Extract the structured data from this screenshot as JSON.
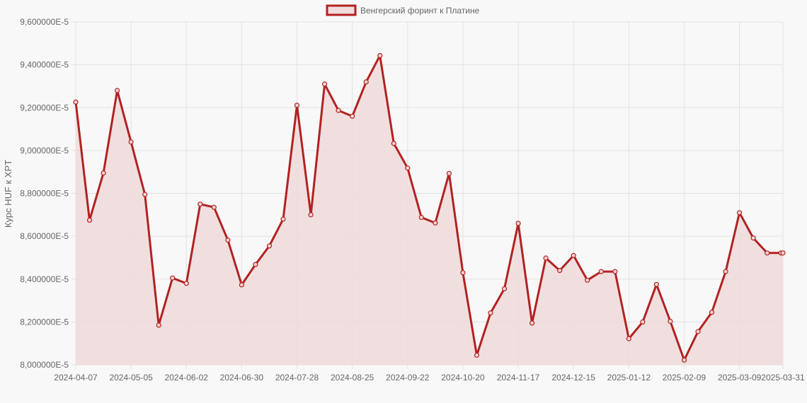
{
  "chart_data": {
    "type": "area",
    "ylabel": "Курс HUF к XPT",
    "legend": {
      "position": "top",
      "label": "Венгерский форинт к Платине"
    },
    "grid": true,
    "colors": {
      "line": "#b22222",
      "fill": "#f0dcdc",
      "background": "#f8f8f8"
    },
    "ylim": [
      8e-05,
      9.6e-05
    ],
    "yticks": [
      "9,600000E-5",
      "9,400000E-5",
      "9,200000E-5",
      "9,000000E-5",
      "8,800000E-5",
      "8,600000E-5",
      "8,400000E-5",
      "8,200000E-5",
      "8,000000E-5"
    ],
    "ytick_values": [
      9.6e-05,
      9.4e-05,
      9.2e-05,
      9e-05,
      8.8e-05,
      8.6e-05,
      8.4e-05,
      8.2e-05,
      8e-05
    ],
    "xticks": [
      "2024-04-07",
      "2024-05-05",
      "2024-06-02",
      "2024-06-30",
      "2024-07-28",
      "2024-08-25",
      "2024-09-22",
      "2024-10-20",
      "2024-11-17",
      "2024-12-15",
      "2025-01-12",
      "2025-02-09",
      "2025-03-09",
      "2025-03-31"
    ],
    "x": [
      "2024-04-07",
      "2024-04-14",
      "2024-04-21",
      "2024-04-28",
      "2024-05-05",
      "2024-05-12",
      "2024-05-19",
      "2024-05-26",
      "2024-06-02",
      "2024-06-09",
      "2024-06-16",
      "2024-06-23",
      "2024-06-30",
      "2024-07-07",
      "2024-07-14",
      "2024-07-21",
      "2024-07-28",
      "2024-08-04",
      "2024-08-11",
      "2024-08-18",
      "2024-08-25",
      "2024-09-01",
      "2024-09-08",
      "2024-09-15",
      "2024-09-22",
      "2024-09-29",
      "2024-10-06",
      "2024-10-13",
      "2024-10-20",
      "2024-10-27",
      "2024-11-03",
      "2024-11-10",
      "2024-11-17",
      "2024-11-24",
      "2024-12-01",
      "2024-12-08",
      "2024-12-15",
      "2024-12-22",
      "2024-12-29",
      "2025-01-05",
      "2025-01-12",
      "2025-01-19",
      "2025-01-26",
      "2025-02-02",
      "2025-02-09",
      "2025-02-16",
      "2025-02-23",
      "2025-03-02",
      "2025-03-09",
      "2025-03-16",
      "2025-03-23",
      "2025-03-30",
      "2025-03-31"
    ],
    "series": [
      {
        "name": "Венгерский форинт к Платине",
        "values": [
          9.226e-05,
          8.675e-05,
          8.895e-05,
          9.28e-05,
          9.04e-05,
          8.795e-05,
          8.185e-05,
          8.405e-05,
          8.38e-05,
          8.75e-05,
          8.735e-05,
          8.582e-05,
          8.373e-05,
          8.468e-05,
          8.555e-05,
          8.68e-05,
          9.211e-05,
          8.7e-05,
          9.31e-05,
          9.187e-05,
          9.16e-05,
          9.32e-05,
          9.443e-05,
          9.033e-05,
          8.918e-05,
          8.688e-05,
          8.662e-05,
          8.893e-05,
          8.43e-05,
          8.045e-05,
          8.242e-05,
          8.355e-05,
          8.66e-05,
          8.195e-05,
          8.498e-05,
          8.44e-05,
          8.51e-05,
          8.395e-05,
          8.435e-05,
          8.435e-05,
          8.122e-05,
          8.2e-05,
          8.375e-05,
          8.203e-05,
          8.022e-05,
          8.155e-05,
          8.245e-05,
          8.435e-05,
          8.71e-05,
          8.592e-05,
          8.522e-05,
          8.522e-05,
          8.522e-05
        ]
      }
    ]
  }
}
